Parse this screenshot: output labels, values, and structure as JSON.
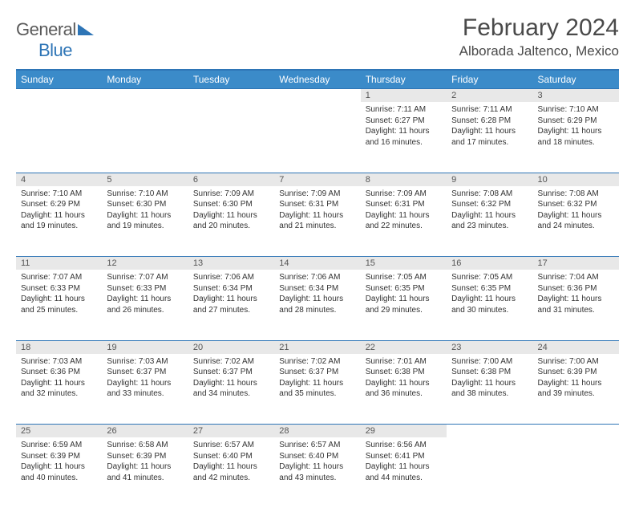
{
  "brand": {
    "part1": "General",
    "part2": "Blue"
  },
  "title": "February 2024",
  "location": "Alborada Jaltenco, Mexico",
  "colors": {
    "header_bg": "#3b8bc9",
    "border": "#2e75b6",
    "daynum_bg": "#e8e8e8",
    "text": "#333333",
    "title_text": "#4a4a4a"
  },
  "dayNames": [
    "Sunday",
    "Monday",
    "Tuesday",
    "Wednesday",
    "Thursday",
    "Friday",
    "Saturday"
  ],
  "weeks": [
    [
      null,
      null,
      null,
      null,
      {
        "n": "1",
        "sr": "7:11 AM",
        "ss": "6:27 PM",
        "dl": "11 hours and 16 minutes."
      },
      {
        "n": "2",
        "sr": "7:11 AM",
        "ss": "6:28 PM",
        "dl": "11 hours and 17 minutes."
      },
      {
        "n": "3",
        "sr": "7:10 AM",
        "ss": "6:29 PM",
        "dl": "11 hours and 18 minutes."
      }
    ],
    [
      {
        "n": "4",
        "sr": "7:10 AM",
        "ss": "6:29 PM",
        "dl": "11 hours and 19 minutes."
      },
      {
        "n": "5",
        "sr": "7:10 AM",
        "ss": "6:30 PM",
        "dl": "11 hours and 19 minutes."
      },
      {
        "n": "6",
        "sr": "7:09 AM",
        "ss": "6:30 PM",
        "dl": "11 hours and 20 minutes."
      },
      {
        "n": "7",
        "sr": "7:09 AM",
        "ss": "6:31 PM",
        "dl": "11 hours and 21 minutes."
      },
      {
        "n": "8",
        "sr": "7:09 AM",
        "ss": "6:31 PM",
        "dl": "11 hours and 22 minutes."
      },
      {
        "n": "9",
        "sr": "7:08 AM",
        "ss": "6:32 PM",
        "dl": "11 hours and 23 minutes."
      },
      {
        "n": "10",
        "sr": "7:08 AM",
        "ss": "6:32 PM",
        "dl": "11 hours and 24 minutes."
      }
    ],
    [
      {
        "n": "11",
        "sr": "7:07 AM",
        "ss": "6:33 PM",
        "dl": "11 hours and 25 minutes."
      },
      {
        "n": "12",
        "sr": "7:07 AM",
        "ss": "6:33 PM",
        "dl": "11 hours and 26 minutes."
      },
      {
        "n": "13",
        "sr": "7:06 AM",
        "ss": "6:34 PM",
        "dl": "11 hours and 27 minutes."
      },
      {
        "n": "14",
        "sr": "7:06 AM",
        "ss": "6:34 PM",
        "dl": "11 hours and 28 minutes."
      },
      {
        "n": "15",
        "sr": "7:05 AM",
        "ss": "6:35 PM",
        "dl": "11 hours and 29 minutes."
      },
      {
        "n": "16",
        "sr": "7:05 AM",
        "ss": "6:35 PM",
        "dl": "11 hours and 30 minutes."
      },
      {
        "n": "17",
        "sr": "7:04 AM",
        "ss": "6:36 PM",
        "dl": "11 hours and 31 minutes."
      }
    ],
    [
      {
        "n": "18",
        "sr": "7:03 AM",
        "ss": "6:36 PM",
        "dl": "11 hours and 32 minutes."
      },
      {
        "n": "19",
        "sr": "7:03 AM",
        "ss": "6:37 PM",
        "dl": "11 hours and 33 minutes."
      },
      {
        "n": "20",
        "sr": "7:02 AM",
        "ss": "6:37 PM",
        "dl": "11 hours and 34 minutes."
      },
      {
        "n": "21",
        "sr": "7:02 AM",
        "ss": "6:37 PM",
        "dl": "11 hours and 35 minutes."
      },
      {
        "n": "22",
        "sr": "7:01 AM",
        "ss": "6:38 PM",
        "dl": "11 hours and 36 minutes."
      },
      {
        "n": "23",
        "sr": "7:00 AM",
        "ss": "6:38 PM",
        "dl": "11 hours and 38 minutes."
      },
      {
        "n": "24",
        "sr": "7:00 AM",
        "ss": "6:39 PM",
        "dl": "11 hours and 39 minutes."
      }
    ],
    [
      {
        "n": "25",
        "sr": "6:59 AM",
        "ss": "6:39 PM",
        "dl": "11 hours and 40 minutes."
      },
      {
        "n": "26",
        "sr": "6:58 AM",
        "ss": "6:39 PM",
        "dl": "11 hours and 41 minutes."
      },
      {
        "n": "27",
        "sr": "6:57 AM",
        "ss": "6:40 PM",
        "dl": "11 hours and 42 minutes."
      },
      {
        "n": "28",
        "sr": "6:57 AM",
        "ss": "6:40 PM",
        "dl": "11 hours and 43 minutes."
      },
      {
        "n": "29",
        "sr": "6:56 AM",
        "ss": "6:41 PM",
        "dl": "11 hours and 44 minutes."
      },
      null,
      null
    ]
  ],
  "labels": {
    "sunrise": "Sunrise: ",
    "sunset": "Sunset: ",
    "daylight": "Daylight: "
  }
}
